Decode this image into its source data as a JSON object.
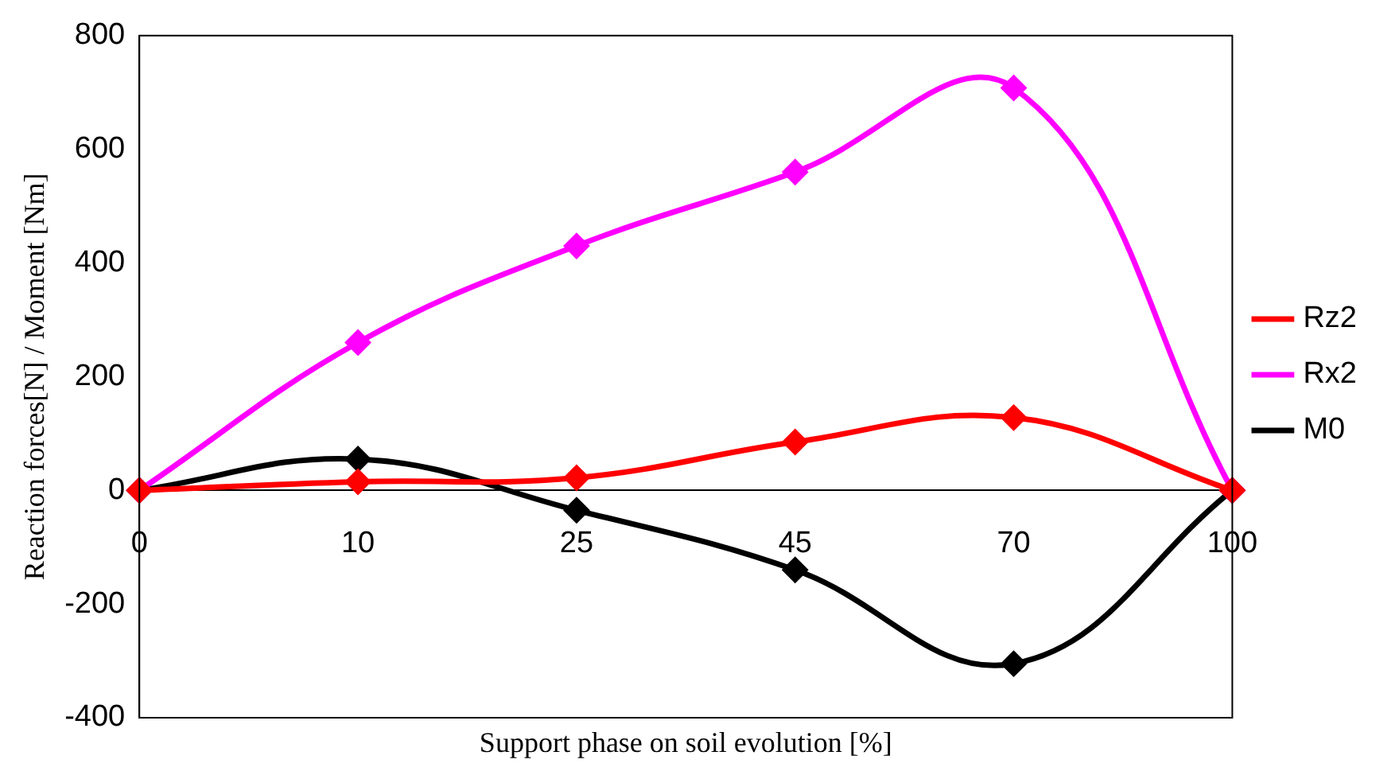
{
  "chart_data": {
    "type": "line",
    "xlabel": "Support phase on soil evolution [%]",
    "ylabel": "Reaction forces[N] / Moment [Nm]",
    "categories": [
      "0",
      "10",
      "25",
      "45",
      "70",
      "100"
    ],
    "series": [
      {
        "name": "Rz2",
        "color": "#ff0000",
        "values": [
          0,
          15,
          22,
          85,
          128,
          0
        ]
      },
      {
        "name": "Rx2",
        "color": "#ff00ff",
        "values": [
          0,
          260,
          430,
          560,
          708,
          0
        ]
      },
      {
        "name": "M0",
        "color": "#000000",
        "values": [
          0,
          55,
          -35,
          -140,
          -305,
          0
        ]
      }
    ],
    "ylim": [
      -400,
      800
    ],
    "yticks": [
      -400,
      -200,
      0,
      200,
      400,
      600,
      800
    ],
    "grid": false,
    "legend": "right",
    "marker": "diamond",
    "line_style": "solid"
  }
}
